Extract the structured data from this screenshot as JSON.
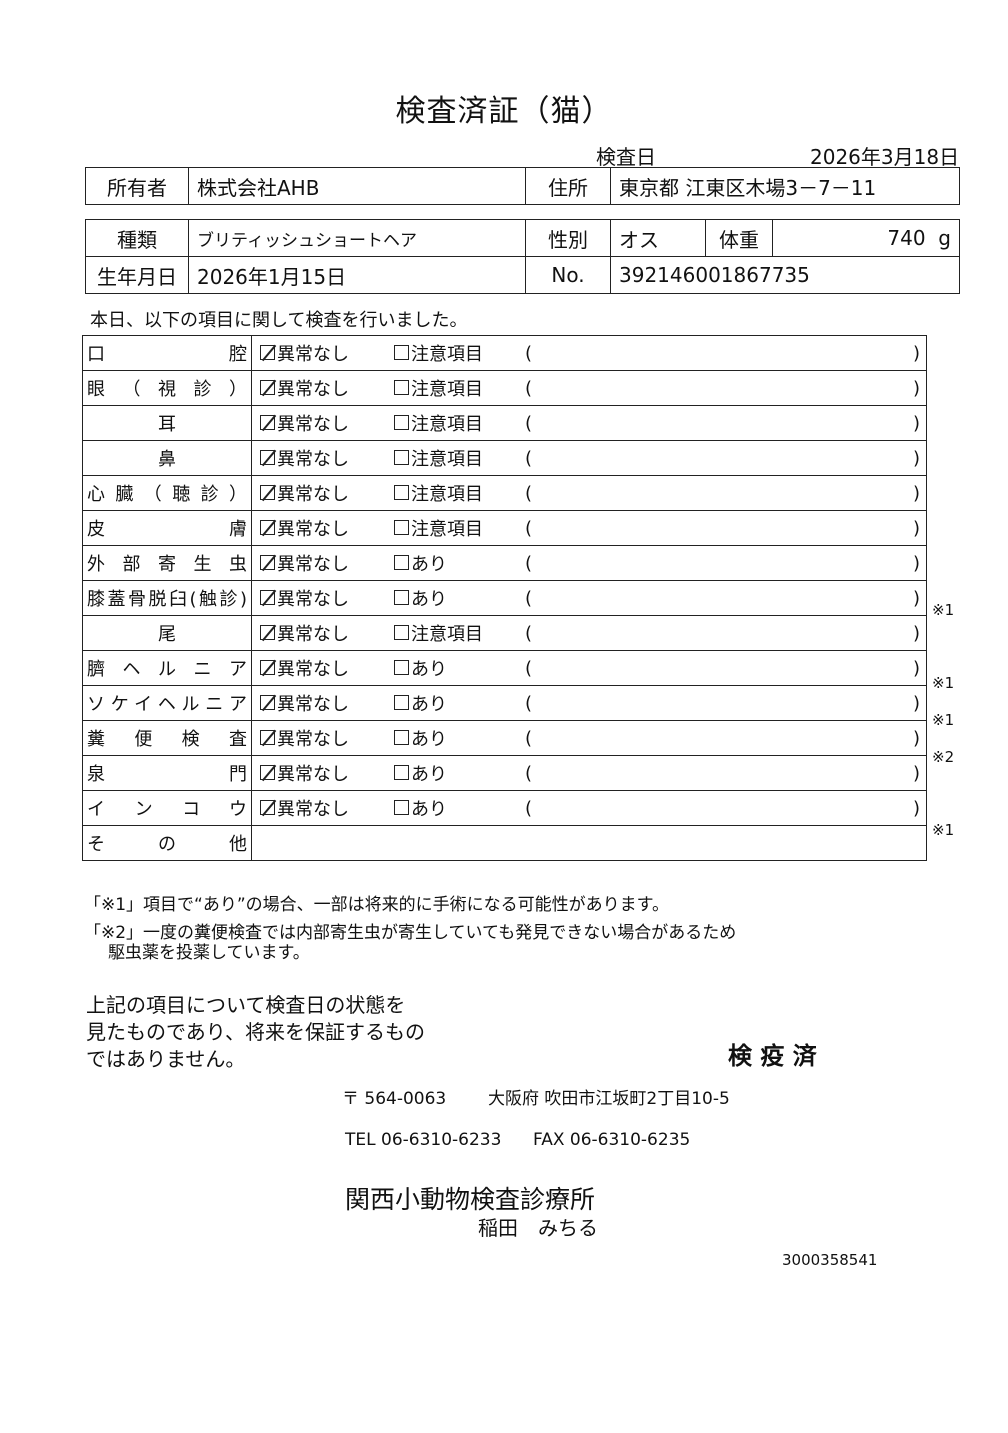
{
  "title": "検査済証（猫）",
  "exam_date_label": "検査日",
  "exam_date": "2026年3月18日",
  "owner": {
    "label": "所有者",
    "value": "株式会社AHB",
    "address_label": "住所",
    "address": "東京都 江東区木場3－7－11"
  },
  "pet": {
    "breed_label": "種類",
    "breed": "ブリティッシュショートヘア",
    "sex_label": "性別",
    "sex": "オス",
    "weight_label": "体重",
    "weight": "740",
    "weight_unit": "g",
    "birth_label": "生年月日",
    "birth": "2026年1月15日",
    "no_label": "No.",
    "no": "392146001867735"
  },
  "intro": "本日、以下の項目に関して検査を行いました。",
  "items": [
    {
      "name": "口腔",
      "opt1": "異常なし",
      "opt2": "注意項目",
      "checked": true,
      "note": ""
    },
    {
      "name": "眼（視診）",
      "opt1": "異常なし",
      "opt2": "注意項目",
      "checked": true,
      "note": ""
    },
    {
      "name": "耳",
      "opt1": "異常なし",
      "opt2": "注意項目",
      "checked": true,
      "note": ""
    },
    {
      "name": "鼻",
      "opt1": "異常なし",
      "opt2": "注意項目",
      "checked": true,
      "note": ""
    },
    {
      "name": "心臓（聴診）",
      "opt1": "異常なし",
      "opt2": "注意項目",
      "checked": true,
      "note": ""
    },
    {
      "name": "皮膚",
      "opt1": "異常なし",
      "opt2": "注意項目",
      "checked": true,
      "note": ""
    },
    {
      "name": "外部寄生虫",
      "opt1": "異常なし",
      "opt2": "あり",
      "checked": true,
      "note": ""
    },
    {
      "name": "膝蓋骨脱臼(触診)",
      "opt1": "異常なし",
      "opt2": "あり",
      "checked": true,
      "note": "※1"
    },
    {
      "name": "尾",
      "opt1": "異常なし",
      "opt2": "注意項目",
      "checked": true,
      "note": ""
    },
    {
      "name": "臍ヘルニア",
      "opt1": "異常なし",
      "opt2": "あり",
      "checked": true,
      "note": "※1"
    },
    {
      "name": "ソケイヘルニア",
      "opt1": "異常なし",
      "opt2": "あり",
      "checked": true,
      "note": "※1"
    },
    {
      "name": "糞便検査",
      "opt1": "異常なし",
      "opt2": "あり",
      "checked": true,
      "note": "※2"
    },
    {
      "name": "泉門",
      "opt1": "異常なし",
      "opt2": "あり",
      "checked": true,
      "note": ""
    },
    {
      "name": "インコウ",
      "opt1": "異常なし",
      "opt2": "あり",
      "checked": true,
      "note": "※1"
    }
  ],
  "other_label": "その他",
  "paren_open": "(",
  "paren_close": ")",
  "notes": [
    "「※1」項目で“あり”の場合、一部は将来的に手術になる可能性があります。",
    "「※2」一度の糞便検査では内部寄生虫が寄生していても発見できない場合があるため",
    "駆虫薬を投薬しています。"
  ],
  "disclaimer": [
    "上記の項目について検査日の状態を",
    "見たものであり、将来を保証するもの",
    "ではありません。"
  ],
  "stamp": "検 疫 済",
  "clinic": {
    "postal": "〒 564-0063",
    "address": "大阪府 吹田市江坂町2丁目10-5",
    "tel": "TEL 06-6310-6233",
    "fax": "FAX 06-6310-6235",
    "name": "関西小動物検査診療所",
    "person": "稲田　みちる"
  },
  "serial": "3000358541"
}
